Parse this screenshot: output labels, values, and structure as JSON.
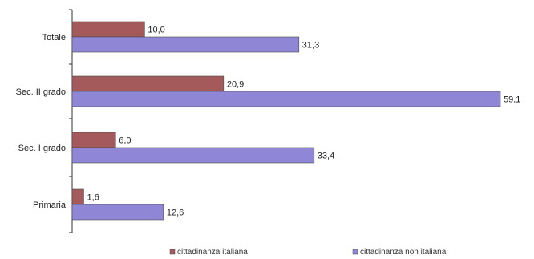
{
  "chart_data": {
    "type": "bar",
    "orientation": "horizontal",
    "categories": [
      "Totale",
      "Sec. II grado",
      "Sec. I grado",
      "Primaria"
    ],
    "series": [
      {
        "name": "cittadinanza italiana",
        "values": [
          10.0,
          20.9,
          6.0,
          1.6
        ],
        "labels": [
          "10,0",
          "20,9",
          "6,0",
          "1,6"
        ],
        "color": "#a45a5a"
      },
      {
        "name": "cittadinanza non italiana",
        "values": [
          31.3,
          59.1,
          33.4,
          12.6
        ],
        "labels": [
          "31,3",
          "59,1",
          "33,4",
          "12,6"
        ],
        "color": "#8f86d6"
      }
    ],
    "xlim": [
      0,
      60
    ],
    "grid": false,
    "legend_position": "bottom"
  }
}
